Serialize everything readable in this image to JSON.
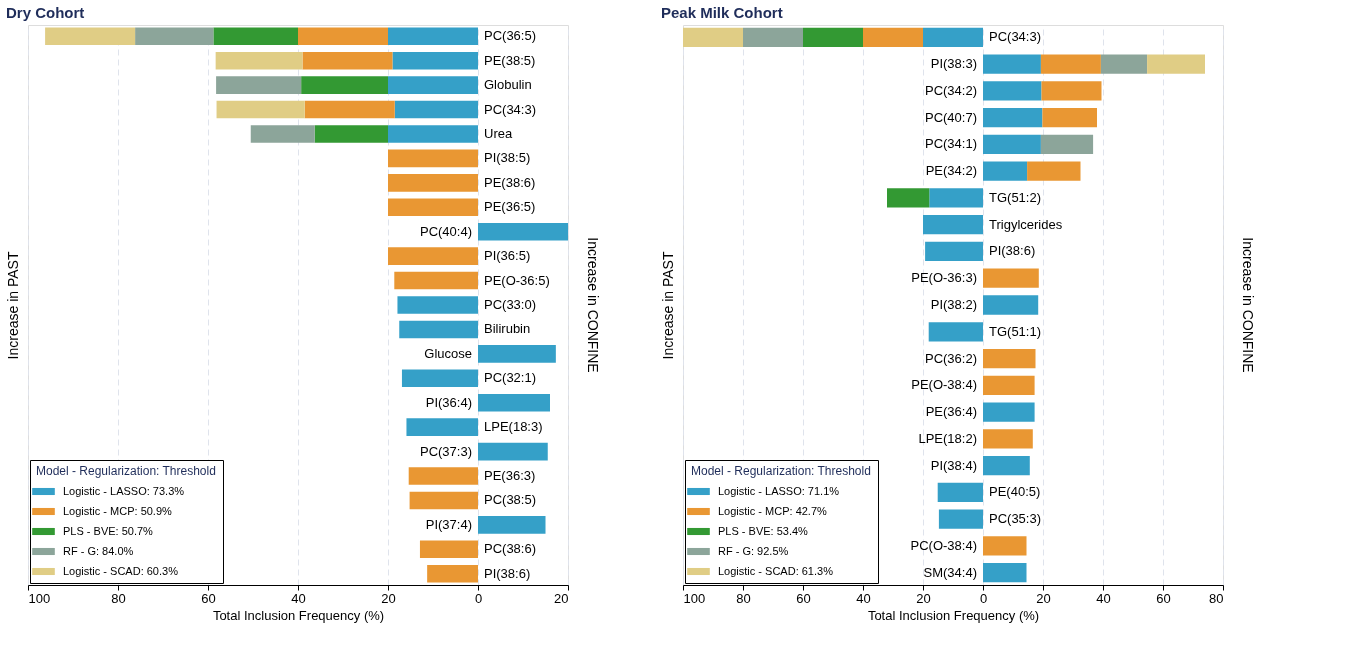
{
  "chart_data": [
    {
      "type": "bar",
      "orientation": "horizontal",
      "stacked": true,
      "title": "Dry Cohort",
      "xlabel": "Total Inclusion Frequency (%)",
      "ylabel": "Increase in PAST",
      "y2label": "Increase in CONFINE",
      "legend_title": "Model - Regularization: Threshold",
      "legend": "bottom left",
      "grid": "x",
      "xlim": [
        -100,
        20
      ],
      "xticks": [
        {
          "value": -100,
          "label": "100"
        },
        {
          "value": -80,
          "label": "80"
        },
        {
          "value": -60,
          "label": "60"
        },
        {
          "value": -40,
          "label": "40"
        },
        {
          "value": -20,
          "label": "20"
        },
        0,
        20
      ],
      "categories": [
        "PC(36:5)",
        "PE(38:5)",
        "Globulin",
        "PC(34:3)",
        "Urea",
        "PI(38:5)",
        "PE(38:6)",
        "PE(36:5)",
        "PC(40:4)",
        "PI(36:5)",
        "PE(O-36:5)",
        "PC(33:0)",
        "Bilirubin",
        "Glucose",
        "PC(32:1)",
        "PI(36:4)",
        "LPE(18:3)",
        "PC(37:3)",
        "PE(36:3)",
        "PC(38:5)",
        "PI(37:4)",
        "PC(38:6)",
        "PI(38:6)"
      ],
      "series": [
        {
          "name": "Logistic - LASSO: 73.3%",
          "color": "#35a0c8",
          "values": [
            -20,
            -19,
            -20,
            -18.5,
            -20,
            null,
            null,
            null,
            20,
            null,
            null,
            -17.9,
            -17.5,
            17.3,
            -16.9,
            16,
            -15.9,
            15.5,
            null,
            null,
            15,
            null,
            null
          ]
        },
        {
          "name": "Logistic - MCP: 50.9%",
          "color": "#e99733",
          "values": [
            -20,
            -20,
            null,
            -20,
            null,
            -20,
            -20,
            -20,
            null,
            -20,
            -18.6,
            null,
            null,
            null,
            null,
            null,
            null,
            null,
            -15.4,
            -15.2,
            null,
            -12.9,
            -11.3
          ]
        },
        {
          "name": "PLS - BVE: 50.7%",
          "color": "#339933",
          "values": [
            -18.8,
            null,
            -19.3,
            null,
            -16.3,
            null,
            null,
            null,
            null,
            null,
            null,
            null,
            null,
            null,
            null,
            null,
            null,
            null,
            null,
            null,
            null,
            null,
            null
          ]
        },
        {
          "name": "RF - G: 84.0%",
          "color": "#8ca59a",
          "values": [
            -17.4,
            null,
            -18.9,
            null,
            -14.2,
            null,
            null,
            null,
            null,
            null,
            null,
            null,
            null,
            null,
            null,
            null,
            null,
            null,
            null,
            null,
            null,
            null,
            null
          ]
        },
        {
          "name": "Logistic - SCAD: 60.3%",
          "color": "#e0cd85",
          "values": [
            -20,
            -19.3,
            null,
            -19.6,
            null,
            null,
            null,
            null,
            null,
            null,
            null,
            null,
            null,
            null,
            null,
            null,
            null,
            null,
            null,
            null,
            null,
            null,
            null
          ]
        }
      ]
    },
    {
      "type": "bar",
      "orientation": "horizontal",
      "stacked": true,
      "title": "Peak Milk Cohort",
      "xlabel": "Total Inclusion Frequency (%)",
      "ylabel": "Increase in PAST",
      "y2label": "Increase in CONFINE",
      "legend_title": "Model - Regularization: Threshold",
      "legend": "bottom left",
      "grid": "x",
      "xlim": [
        -100,
        80
      ],
      "xticks": [
        {
          "value": -100,
          "label": "100"
        },
        {
          "value": -80,
          "label": "80"
        },
        {
          "value": -60,
          "label": "60"
        },
        {
          "value": -40,
          "label": "40"
        },
        {
          "value": -20,
          "label": "20"
        },
        0,
        20,
        40,
        60,
        80
      ],
      "categories": [
        "PC(34:3)",
        "PI(38:3)",
        "PC(34:2)",
        "PC(40:7)",
        "PC(34:1)",
        "PE(34:2)",
        "TG(51:2)",
        "Trigylcerides",
        "PI(38:6)",
        "PE(O-36:3)",
        "PI(38:2)",
        "TG(51:1)",
        "PC(36:2)",
        "PE(O-38:4)",
        "PE(36:4)",
        "LPE(18:2)",
        "PI(38:4)",
        "PE(40:5)",
        "PC(35:3)",
        "PC(O-38:4)",
        "SM(34:4)"
      ],
      "series": [
        {
          "name": "Logistic - LASSO: 71.1%",
          "color": "#35a0c8",
          "values": [
            -20,
            19.3,
            19.5,
            19.8,
            19.3,
            14.7,
            -17.9,
            -20,
            -19.3,
            null,
            18.4,
            -18.1,
            null,
            null,
            17.2,
            null,
            15.6,
            -15.1,
            -14.7,
            null,
            14.5
          ]
        },
        {
          "name": "Logistic - MCP: 42.7%",
          "color": "#e99733",
          "values": [
            -20,
            20,
            20,
            18.2,
            null,
            17.8,
            null,
            null,
            null,
            18.6,
            null,
            null,
            17.5,
            17.2,
            null,
            16.6,
            null,
            null,
            null,
            14.5,
            null
          ]
        },
        {
          "name": "PLS - BVE: 53.4%",
          "color": "#339933",
          "values": [
            -20,
            null,
            null,
            null,
            null,
            null,
            -14.1,
            null,
            null,
            null,
            null,
            null,
            null,
            null,
            null,
            null,
            null,
            null,
            null,
            null,
            null
          ]
        },
        {
          "name": "RF - G: 92.5%",
          "color": "#8ca59a",
          "values": [
            -20,
            15.4,
            null,
            null,
            17.4,
            null,
            null,
            null,
            null,
            null,
            null,
            null,
            null,
            null,
            null,
            null,
            null,
            null,
            null,
            null,
            null
          ]
        },
        {
          "name": "Logistic - SCAD: 61.3%",
          "color": "#e0cd85",
          "values": [
            -20,
            19.3,
            null,
            null,
            null,
            null,
            null,
            null,
            null,
            null,
            null,
            null,
            null,
            null,
            null,
            null,
            null,
            null,
            null,
            null,
            null
          ]
        }
      ]
    }
  ]
}
